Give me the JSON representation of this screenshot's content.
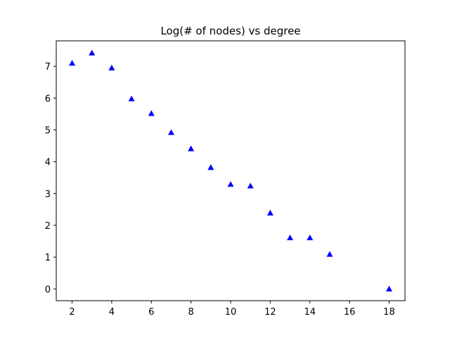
{
  "chart_data": {
    "type": "scatter",
    "title": "Log(# of nodes) vs degree",
    "xlabel": "",
    "ylabel": "",
    "xlim": [
      1.2,
      18.8
    ],
    "ylim": [
      -0.37,
      7.8
    ],
    "x_ticks": [
      2,
      4,
      6,
      8,
      10,
      12,
      14,
      16,
      18
    ],
    "y_ticks": [
      0,
      1,
      2,
      3,
      4,
      5,
      6,
      7
    ],
    "grid": false,
    "marker": "triangle-up",
    "marker_color": "#0000ff",
    "series": [
      {
        "x": [
          2,
          3,
          4,
          5,
          6,
          7,
          8,
          9,
          10,
          11,
          12,
          13,
          14,
          15,
          18
        ],
        "y": [
          7.1,
          7.42,
          6.95,
          5.98,
          5.52,
          4.92,
          4.41,
          3.82,
          3.29,
          3.24,
          2.39,
          1.61,
          1.61,
          1.09,
          0.0
        ]
      }
    ]
  }
}
